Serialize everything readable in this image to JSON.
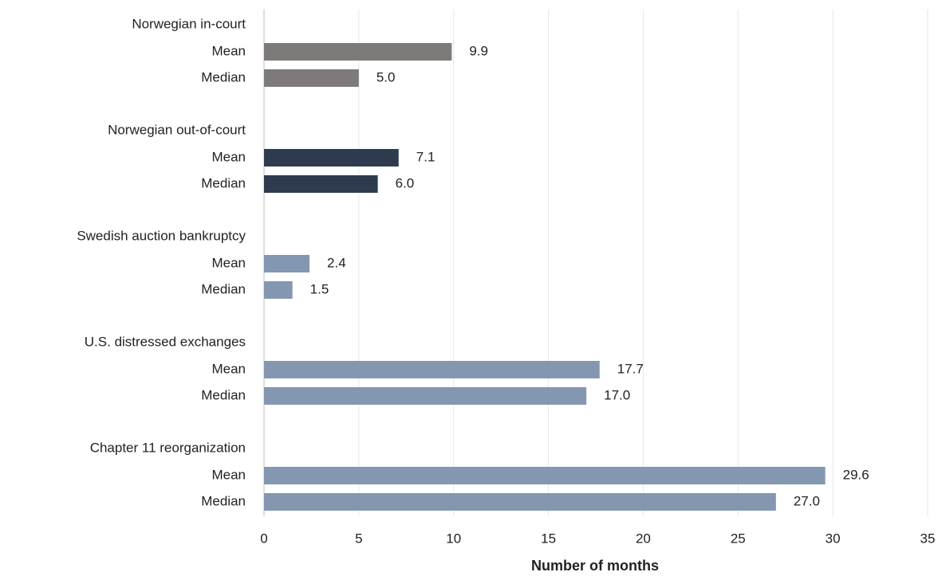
{
  "chart_data": {
    "type": "bar",
    "orientation": "horizontal",
    "xlabel": "Number of months",
    "categories": [
      "Mean",
      "Median"
    ],
    "groups": [
      {
        "name": "Norwegian in-court",
        "color": "#7f7a7a",
        "values": [
          9.9,
          5.0
        ],
        "value_labels": [
          "9.9",
          "5.0"
        ]
      },
      {
        "name": "Norwegian out-of-court",
        "color": "#2e3b4e",
        "values": [
          7.1,
          6.0
        ],
        "value_labels": [
          "7.1",
          "6.0"
        ]
      },
      {
        "name": "Swedish auction bankruptcy",
        "color": "#8497b0",
        "values": [
          2.4,
          1.5
        ],
        "value_labels": [
          "2.4",
          "1.5"
        ]
      },
      {
        "name": "U.S. distressed exchanges",
        "color": "#8497b0",
        "values": [
          17.7,
          17.0
        ],
        "value_labels": [
          "17.7",
          "17.0"
        ]
      },
      {
        "name": "Chapter 11 reorganization",
        "color": "#8497b0",
        "values": [
          29.6,
          27.0
        ],
        "value_labels": [
          "29.6",
          "27.0"
        ]
      }
    ],
    "xlim": [
      0,
      35
    ],
    "xticks": [
      0,
      5,
      10,
      15,
      20,
      25,
      30,
      35
    ],
    "grid": true
  }
}
